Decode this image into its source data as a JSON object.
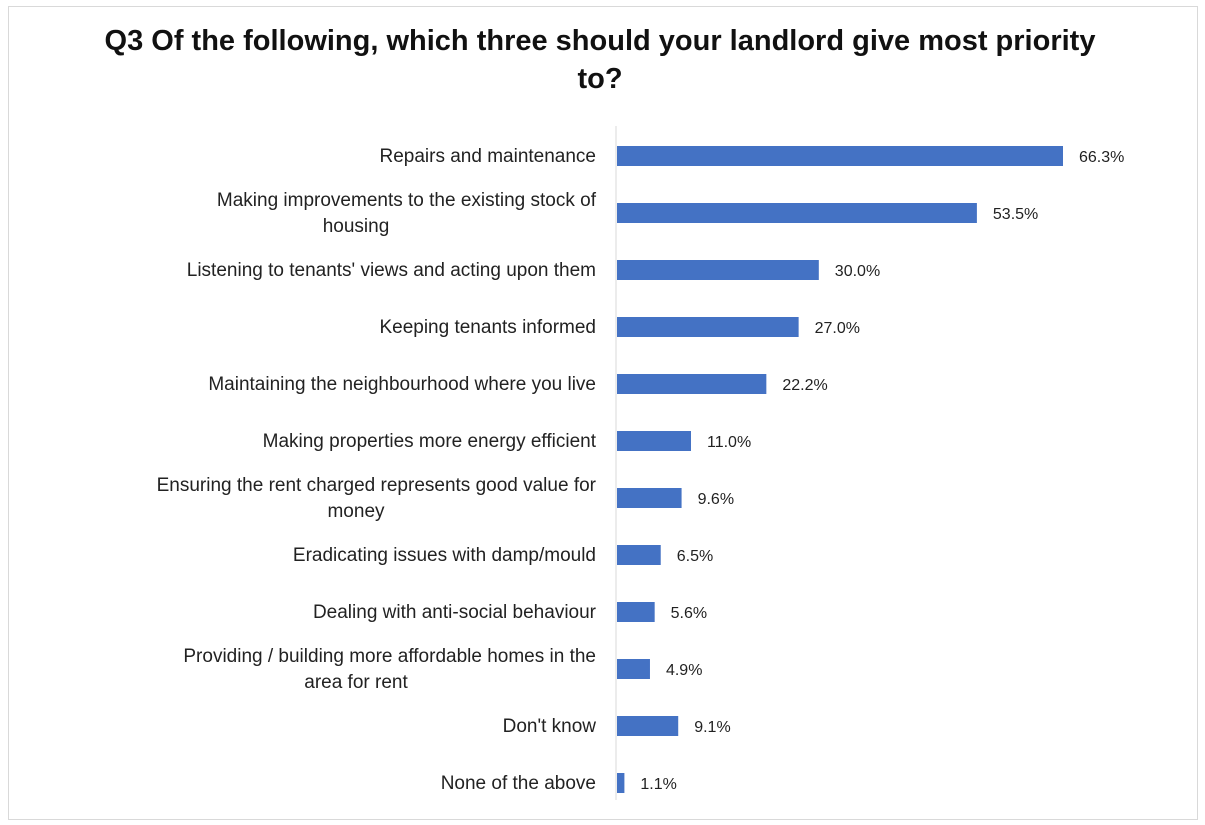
{
  "chart_data": {
    "type": "bar",
    "orientation": "horizontal",
    "title": "Q3 Of the following, which three should your landlord give most priority to?",
    "categories": [
      [
        "Repairs and maintenance"
      ],
      [
        "Making improvements to the existing stock of",
        "housing"
      ],
      [
        "Listening to tenants' views and acting upon them"
      ],
      [
        "Keeping tenants informed"
      ],
      [
        "Maintaining the neighbourhood where you live"
      ],
      [
        "Making properties more energy efficient"
      ],
      [
        "Ensuring the rent charged represents good value for",
        "money"
      ],
      [
        "Eradicating issues with damp/mould"
      ],
      [
        "Dealing with anti-social behaviour"
      ],
      [
        "Providing / building more affordable homes in the",
        "area for rent"
      ],
      [
        "Don't know"
      ],
      [
        "None of the above"
      ]
    ],
    "values": [
      66.3,
      53.5,
      30.0,
      27.0,
      22.2,
      11.0,
      9.6,
      6.5,
      5.6,
      4.9,
      9.1,
      1.1
    ],
    "data_labels": [
      "66.3%",
      "53.5%",
      "30.0%",
      "27.0%",
      "22.2%",
      "11.0%",
      "9.6%",
      "6.5%",
      "5.6%",
      "4.9%",
      "9.1%",
      "1.1%"
    ],
    "xlim": [
      0,
      70
    ],
    "bar_color": "#4472c4",
    "grid": false,
    "legend": "none"
  }
}
